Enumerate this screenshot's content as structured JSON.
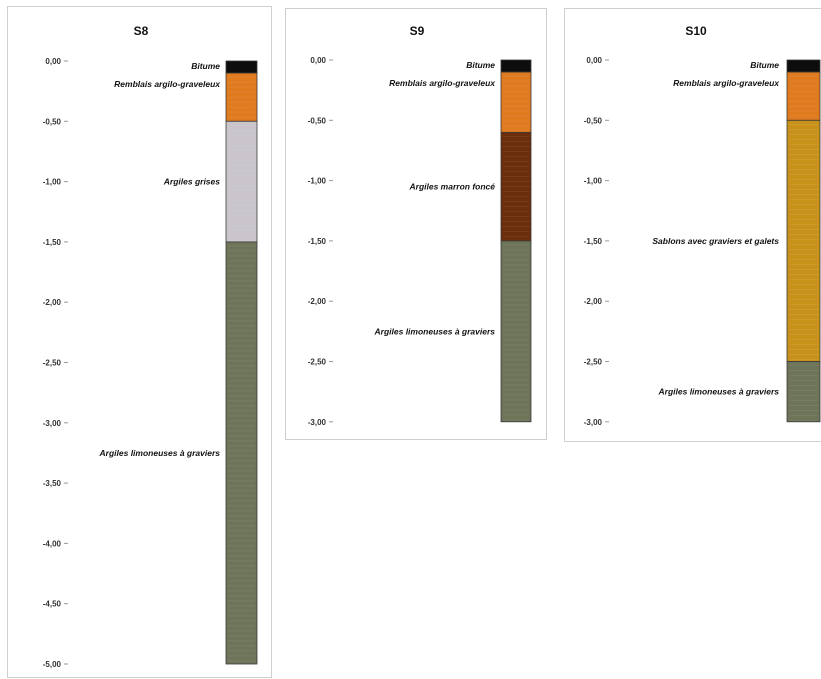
{
  "boreholes": [
    {
      "id": "s8",
      "title": "S8",
      "depth_ticks": [
        "0,00",
        "-0,50",
        "-1,00",
        "-1,50",
        "-2,00",
        "-2,50",
        "-3,00",
        "-3,50",
        "-4,00",
        "-4,50",
        "-5,00"
      ],
      "layers": [
        {
          "name": "Bitume",
          "top": 0.0,
          "bottom": 0.1,
          "color": "#0d0d0d"
        },
        {
          "name": "Remblais argilo-graveleux",
          "top": 0.1,
          "bottom": 0.5,
          "color": "#e07a1f"
        },
        {
          "name": "Argiles grises",
          "top": 0.5,
          "bottom": 1.5,
          "color": "#c9c5cb"
        },
        {
          "name": "Argiles limoneuses à graviers",
          "top": 1.5,
          "bottom": 5.0,
          "color": "#6e7459"
        }
      ]
    },
    {
      "id": "s9",
      "title": "S9",
      "depth_ticks": [
        "0,00",
        "-0,50",
        "-1,00",
        "-1,50",
        "-2,00",
        "-2,50",
        "-3,00"
      ],
      "layers": [
        {
          "name": "Bitume",
          "top": 0.0,
          "bottom": 0.1,
          "color": "#0d0d0d"
        },
        {
          "name": "Remblais argilo-graveleux",
          "top": 0.1,
          "bottom": 0.6,
          "color": "#e07a1f"
        },
        {
          "name": "Argiles marron foncé",
          "top": 0.6,
          "bottom": 1.5,
          "color": "#6a2e0b"
        },
        {
          "name": "Argiles limoneuses à graviers",
          "top": 1.5,
          "bottom": 3.0,
          "color": "#6e7459"
        }
      ]
    },
    {
      "id": "s10",
      "title": "S10",
      "depth_ticks": [
        "0,00",
        "-0,50",
        "-1,00",
        "-1,50",
        "-2,00",
        "-2,50",
        "-3,00"
      ],
      "layers": [
        {
          "name": "Bitume",
          "top": 0.0,
          "bottom": 0.1,
          "color": "#0d0d0d"
        },
        {
          "name": "Remblais argilo-graveleux",
          "top": 0.1,
          "bottom": 0.5,
          "color": "#e07a1f"
        },
        {
          "name": "Sablons avec graviers et galets",
          "top": 0.5,
          "bottom": 2.5,
          "color": "#c8921a"
        },
        {
          "name": "Argiles limoneuses à graviers",
          "top": 2.5,
          "bottom": 3.0,
          "color": "#6e7459"
        }
      ]
    }
  ]
}
